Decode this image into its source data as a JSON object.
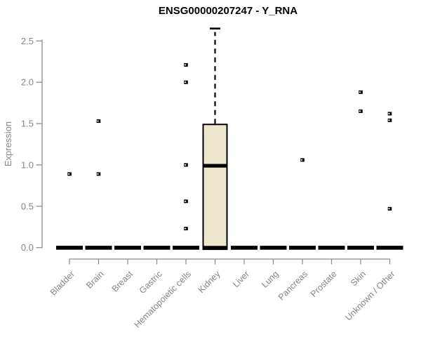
{
  "title": "ENSG00000207247 - Y_RNA",
  "chart_data": {
    "type": "boxplot",
    "title": "ENSG00000207247 - Y_RNA",
    "xlabel": "",
    "ylabel": "Expression",
    "ylim": [
      0,
      2.5
    ],
    "yticks": [
      0.0,
      0.5,
      1.0,
      1.5,
      2.0,
      2.5
    ],
    "grid": false,
    "legend": "none",
    "point_symbol": "small-open-square",
    "categories": [
      "Bladder",
      "Brain",
      "Breast",
      "Gastric",
      "Hematopoietic cells",
      "Kidney",
      "Liver",
      "Lung",
      "Pancreas",
      "Prostate",
      "Skin",
      "Unknown / Other"
    ],
    "boxes": [
      {
        "category": "Bladder",
        "q1": 0,
        "median": 0,
        "q3": 0,
        "whisker_low": 0,
        "whisker_high": 0,
        "outliers": [
          0.89
        ]
      },
      {
        "category": "Brain",
        "q1": 0,
        "median": 0,
        "q3": 0,
        "whisker_low": 0,
        "whisker_high": 0,
        "outliers": [
          1.53,
          0.89
        ]
      },
      {
        "category": "Breast",
        "q1": 0,
        "median": 0,
        "q3": 0,
        "whisker_low": 0,
        "whisker_high": 0,
        "outliers": []
      },
      {
        "category": "Gastric",
        "q1": 0,
        "median": 0,
        "q3": 0,
        "whisker_low": 0,
        "whisker_high": 0,
        "outliers": []
      },
      {
        "category": "Hematopoietic cells",
        "q1": 0,
        "median": 0,
        "q3": 0,
        "whisker_low": 0,
        "whisker_high": 0,
        "outliers": [
          2.21,
          2.0,
          1.0,
          0.56,
          0.23
        ]
      },
      {
        "category": "Kidney",
        "q1": 0,
        "median": 0.99,
        "q3": 1.49,
        "whisker_low": 0,
        "whisker_high": 2.65,
        "outliers": []
      },
      {
        "category": "Liver",
        "q1": 0,
        "median": 0,
        "q3": 0,
        "whisker_low": 0,
        "whisker_high": 0,
        "outliers": []
      },
      {
        "category": "Lung",
        "q1": 0,
        "median": 0,
        "q3": 0,
        "whisker_low": 0,
        "whisker_high": 0,
        "outliers": []
      },
      {
        "category": "Pancreas",
        "q1": 0,
        "median": 0,
        "q3": 0,
        "whisker_low": 0,
        "whisker_high": 0,
        "outliers": [
          1.06
        ]
      },
      {
        "category": "Prostate",
        "q1": 0,
        "median": 0,
        "q3": 0,
        "whisker_low": 0,
        "whisker_high": 0,
        "outliers": []
      },
      {
        "category": "Skin",
        "q1": 0,
        "median": 0,
        "q3": 0,
        "whisker_low": 0,
        "whisker_high": 0,
        "outliers": [
          1.88,
          1.65
        ]
      },
      {
        "category": "Unknown / Other",
        "q1": 0,
        "median": 0,
        "q3": 0,
        "whisker_low": 0,
        "whisker_high": 0,
        "outliers": [
          1.62,
          1.54,
          0.47
        ]
      }
    ],
    "colors": {
      "box_fill": "#ece7cd",
      "box_stroke": "#000000",
      "median": "#000000",
      "outlier": "#000000",
      "axis": "#8c8c8c",
      "tick_label": "#858585",
      "title": "#000000",
      "background": "#ffffff"
    }
  }
}
